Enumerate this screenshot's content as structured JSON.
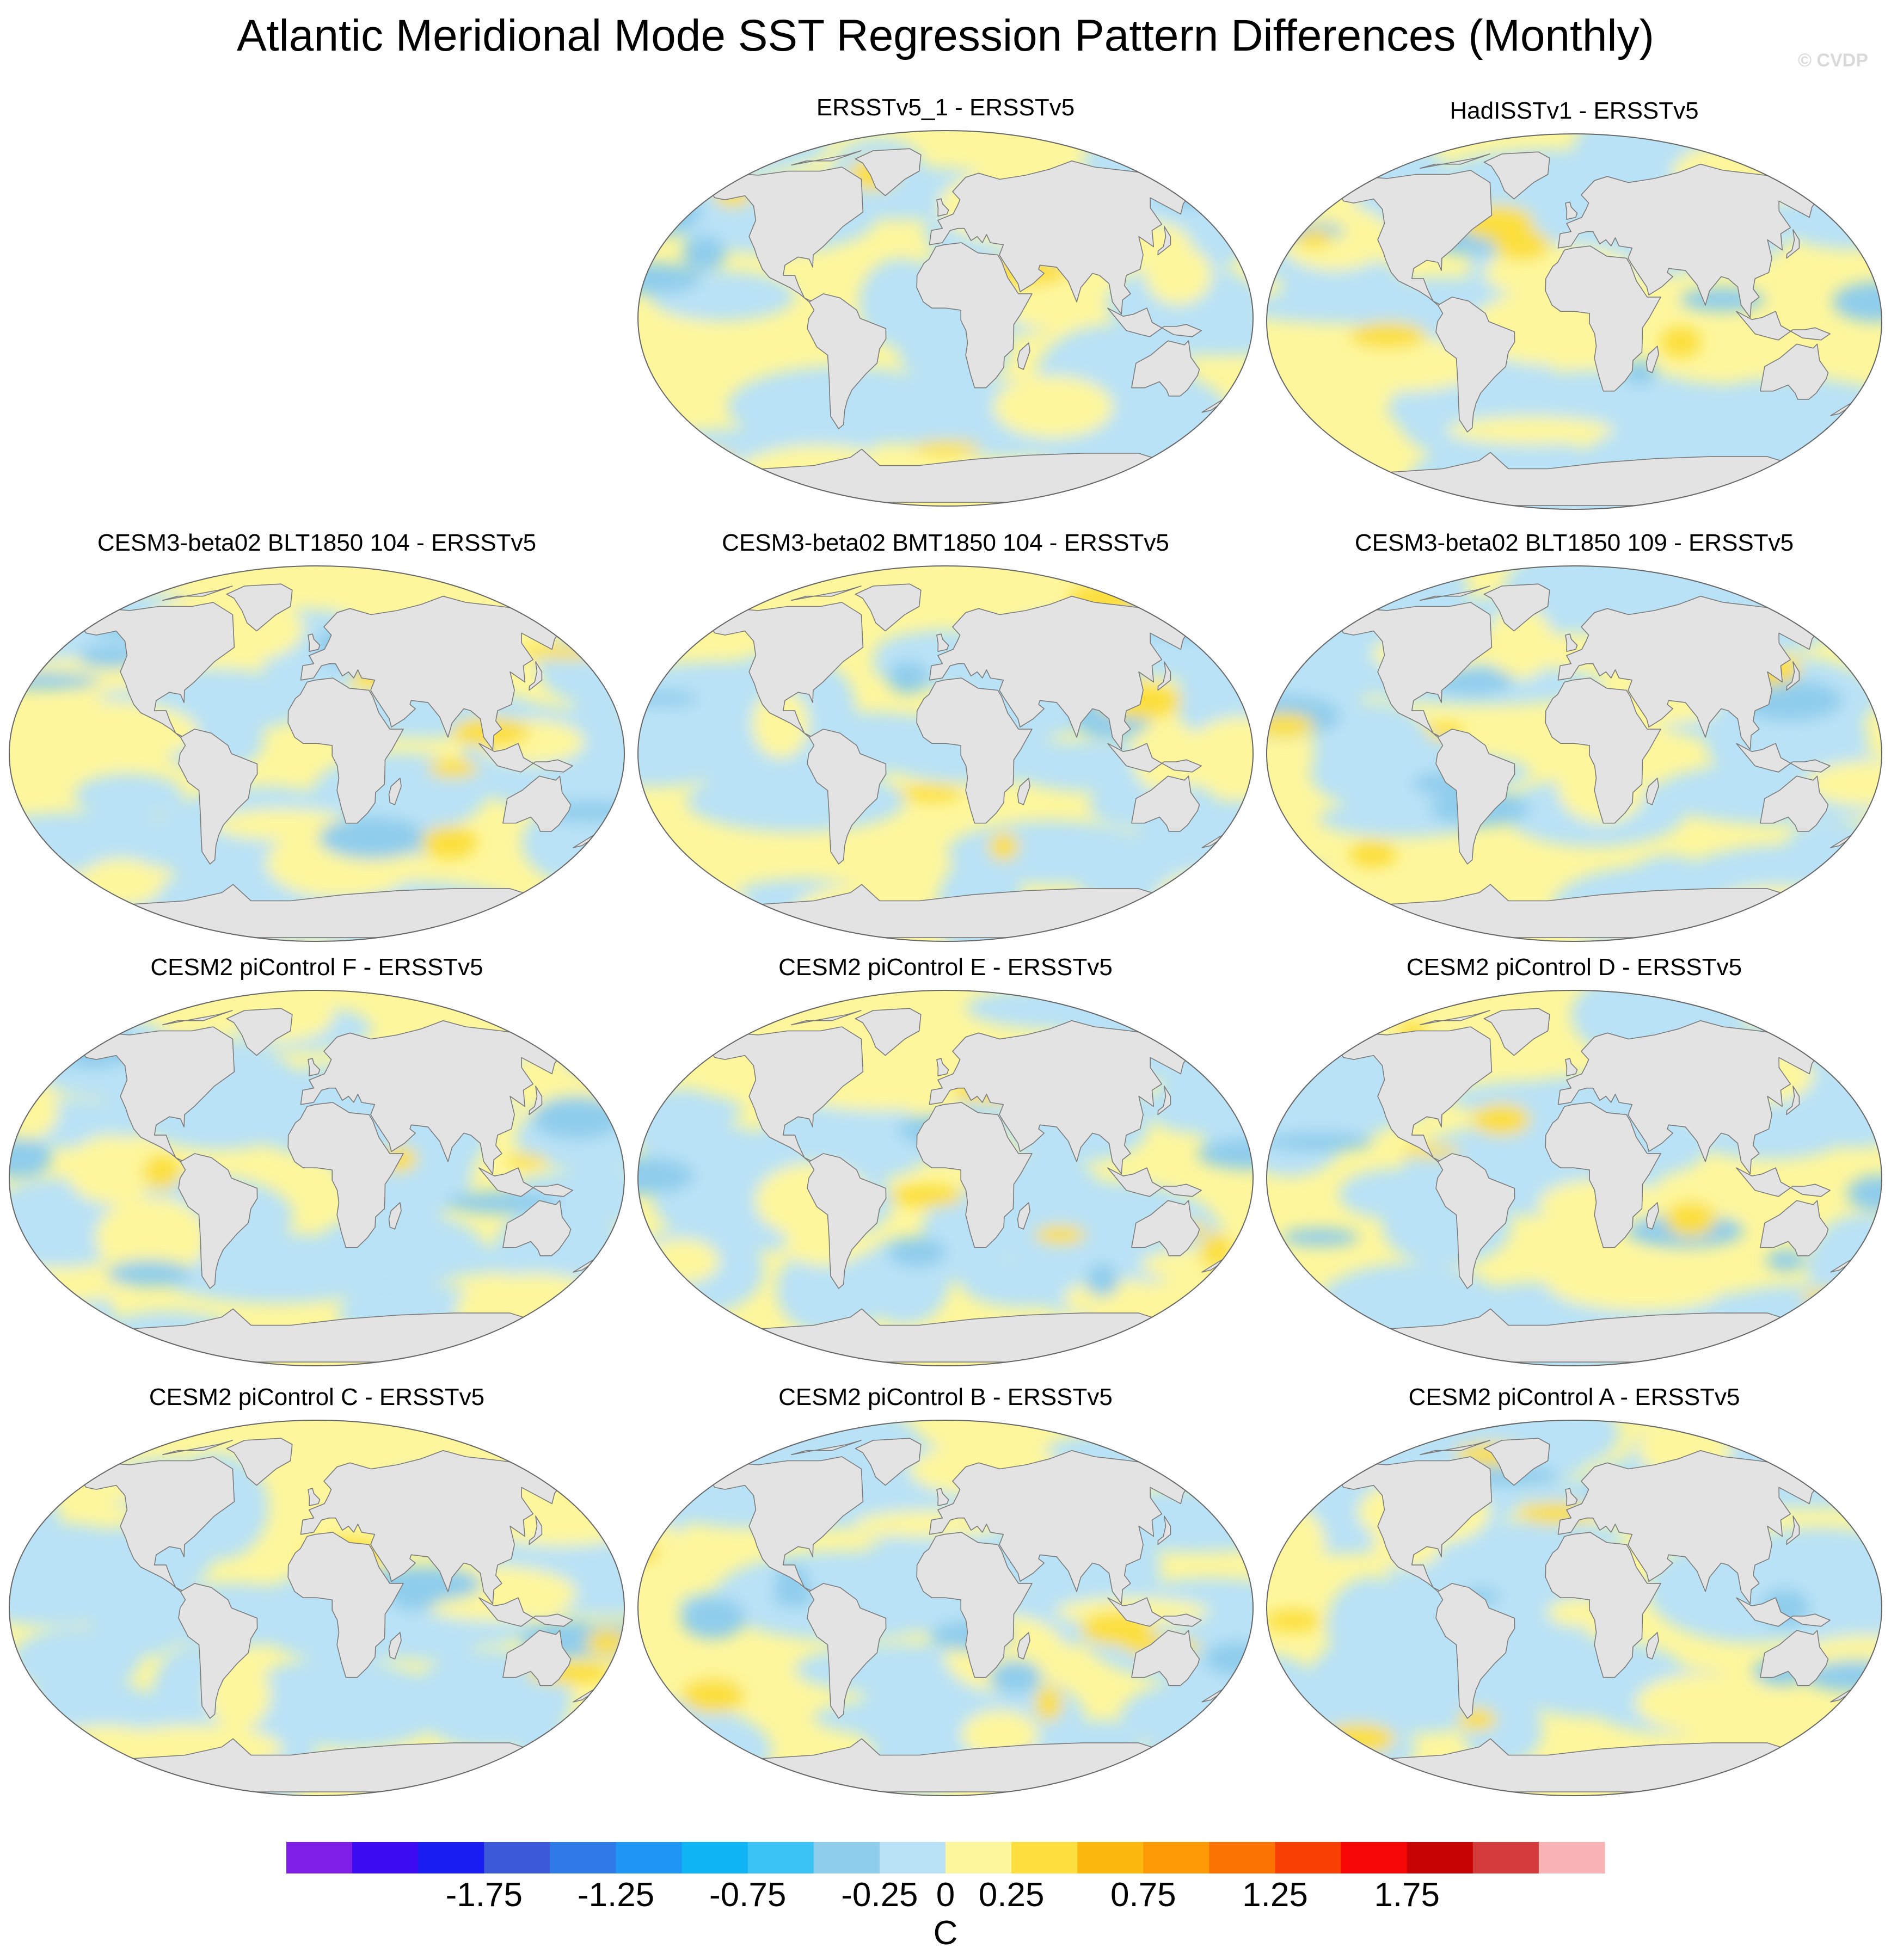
{
  "title": "Atlantic Meridional Mode SST Regression Pattern Differences (Monthly)",
  "credit": "© CVDP",
  "chart_data": {
    "type": "heatmap",
    "projection": "robinson",
    "units": "C",
    "panels": [
      {
        "title": "ERSSTv5_1 - ERSSTv5",
        "pattern": 1
      },
      {
        "title": "HadISSTv1 - ERSSTv5",
        "pattern": 2
      },
      {
        "title": "CESM3-beta02 BLT1850 104 - ERSSTv5",
        "pattern": 3
      },
      {
        "title": "CESM3-beta02 BMT1850 104 - ERSSTv5",
        "pattern": 4
      },
      {
        "title": "CESM3-beta02 BLT1850 109 - ERSSTv5",
        "pattern": 5
      },
      {
        "title": "CESM2 piControl F - ERSSTv5",
        "pattern": 6
      },
      {
        "title": "CESM2 piControl E - ERSSTv5",
        "pattern": 7
      },
      {
        "title": "CESM2 piControl D - ERSSTv5",
        "pattern": 8
      },
      {
        "title": "CESM2 piControl C - ERSSTv5",
        "pattern": 9
      },
      {
        "title": "CESM2 piControl B - ERSSTv5",
        "pattern": 10
      },
      {
        "title": "CESM2 piControl A - ERSSTv5",
        "pattern": 11
      }
    ],
    "colorbar": {
      "levels": [
        -2,
        -1.75,
        -1.5,
        -1.25,
        -1,
        -0.75,
        -0.5,
        -0.25,
        0,
        0.25,
        0.5,
        0.75,
        1,
        1.25,
        1.5,
        1.75,
        2
      ],
      "colors": [
        "#7f1ee6",
        "#3d0cf2",
        "#1a1ef0",
        "#3a5ad9",
        "#2e7ae6",
        "#1e96f5",
        "#0fb4f5",
        "#3cc3f5",
        "#8fcdec",
        "#b9e2f6",
        "#fdf69c",
        "#fcdf3e",
        "#fcb80f",
        "#fc9a05",
        "#fb7303",
        "#f84005",
        "#f60604",
        "#c80303",
        "#d43c3c",
        "#f8b4b4"
      ],
      "tick_labels": [
        "-1.75",
        "-1.25",
        "-0.75",
        "-0.25",
        "0",
        "0.25",
        "0.75",
        "1.25",
        "1.75"
      ],
      "tick_values": [
        -1.75,
        -1.25,
        -0.75,
        -0.25,
        0,
        0.25,
        0.75,
        1.25,
        1.75
      ],
      "label": "C"
    }
  }
}
